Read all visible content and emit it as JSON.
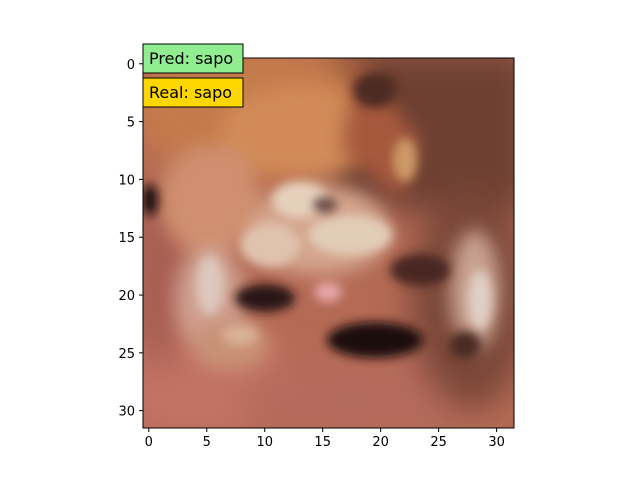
{
  "figure": {
    "image_subject": "frog",
    "image_resolution": [
      32,
      32
    ],
    "xticks": [
      "0",
      "5",
      "10",
      "15",
      "20",
      "25",
      "30"
    ],
    "yticks": [
      "0",
      "5",
      "10",
      "15",
      "20",
      "25",
      "30"
    ]
  },
  "annotations": {
    "pred": {
      "text": "Pred: sapo",
      "bg_color": "#90ee90"
    },
    "real": {
      "text": "Real: sapo",
      "bg_color": "#ffd700"
    }
  }
}
